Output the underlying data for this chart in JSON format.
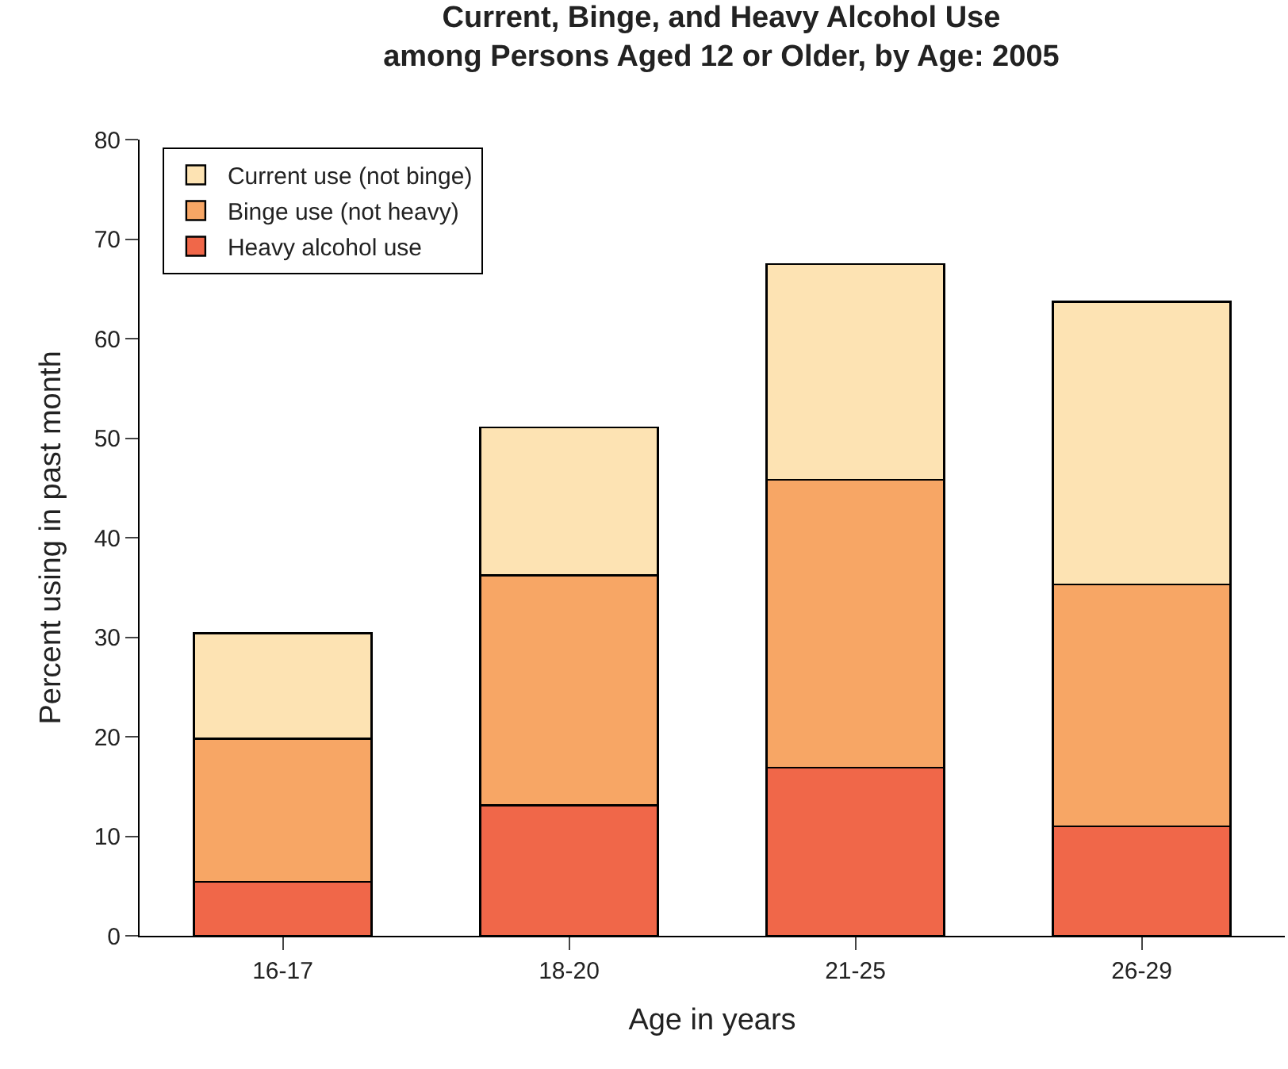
{
  "chart_data": {
    "type": "bar",
    "stacked": true,
    "title": "Current, Binge, and Heavy Alcohol Use\namong Persons Aged 12 or Older, by Age: 2005",
    "xlabel": "Age in years",
    "ylabel": "Percent using in past month",
    "categories": [
      "16-17",
      "18-20",
      "21-25",
      "26-29"
    ],
    "series": [
      {
        "name": "Heavy alcohol use",
        "color": "#f06749",
        "values": [
          5.4,
          13.1,
          16.9,
          11.0
        ]
      },
      {
        "name": "Binge use (not heavy)",
        "color": "#f7a665",
        "values": [
          14.4,
          23.1,
          28.9,
          24.3
        ]
      },
      {
        "name": "Current use (not binge)",
        "color": "#fde3b3",
        "values": [
          10.6,
          14.9,
          21.7,
          28.4
        ]
      }
    ],
    "ylim": [
      0,
      80
    ],
    "yticks": [
      0,
      10,
      20,
      30,
      40,
      50,
      60,
      70,
      80
    ],
    "legend": "top left"
  }
}
